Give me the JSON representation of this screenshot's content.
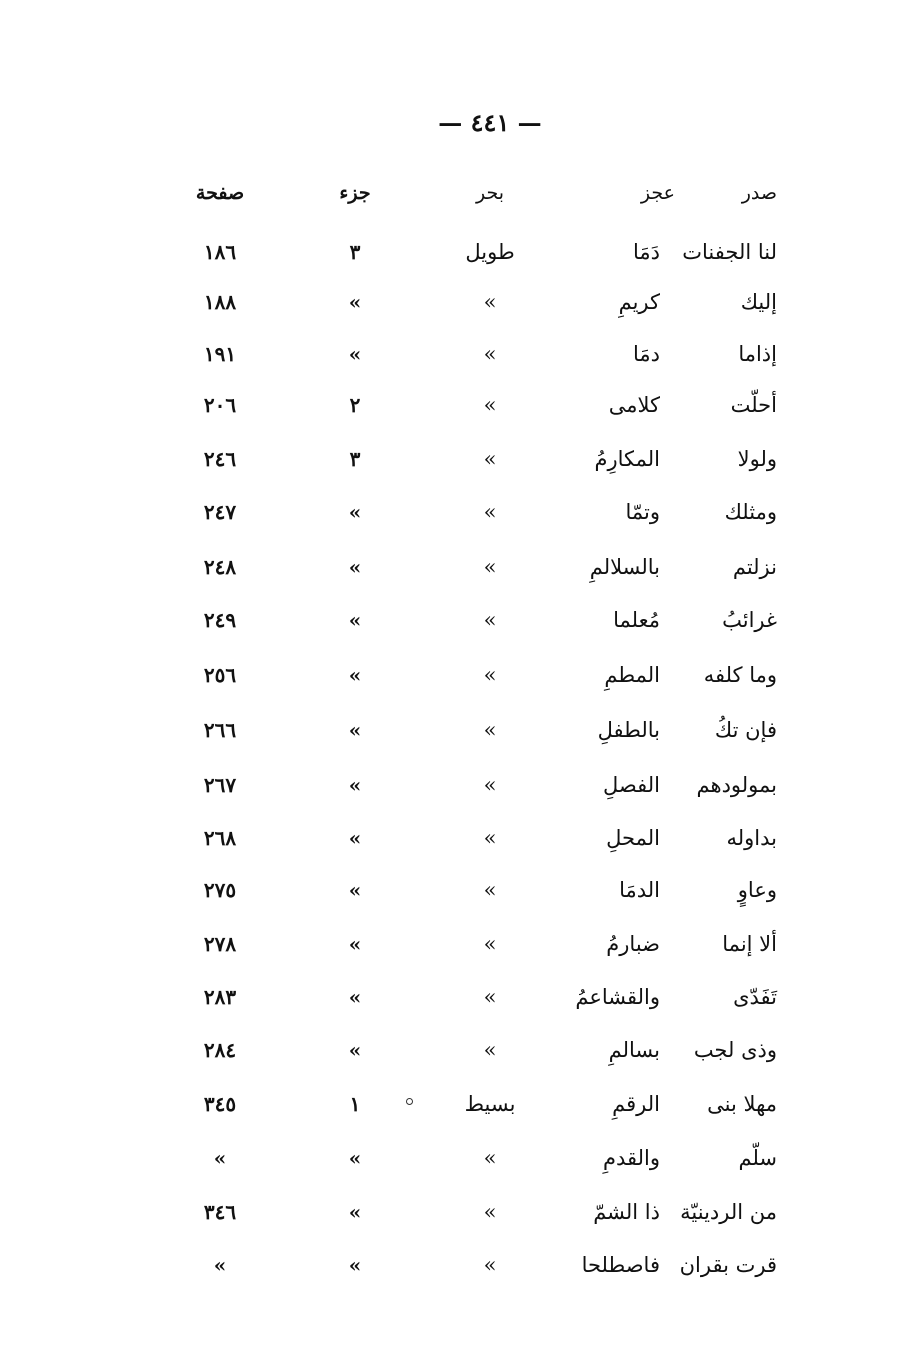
{
  "page_number": "— ٤٤١ —",
  "headers": {
    "page": "صفحة",
    "part": "جزء",
    "meter": "بحر",
    "ajuz": "عجز",
    "sadr": "صدر"
  },
  "rows": [
    {
      "sadr": "لنا الجفنات",
      "ajuz": "دَمَا",
      "meter": "طويل",
      "part": "٣",
      "page": "١٨٦"
    },
    {
      "sadr": "إليك",
      "ajuz": "كريمِ",
      "meter": "»",
      "part": "»",
      "page": "١٨٨"
    },
    {
      "sadr": "إذاما",
      "ajuz": "دمَا",
      "meter": "»",
      "part": "»",
      "page": "١٩١"
    },
    {
      "sadr": "أحلّت",
      "ajuz": "كلامى",
      "meter": "»",
      "part": "٢",
      "page": "٢٠٦"
    },
    {
      "sadr": "ولولا",
      "ajuz": "المكارِمُ",
      "meter": "»",
      "part": "٣",
      "page": "٢٤٦"
    },
    {
      "sadr": "ومثلك",
      "ajuz": "وتمّا",
      "meter": "»",
      "part": "»",
      "page": "٢٤٧"
    },
    {
      "sadr": "نزلتم",
      "ajuz": "بالسلالمِ",
      "meter": "»",
      "part": "»",
      "page": "٢٤٨"
    },
    {
      "sadr": "غرائبُ",
      "ajuz": "مُعلما",
      "meter": "»",
      "part": "»",
      "page": "٢٤٩"
    },
    {
      "sadr": "وما كلفه",
      "ajuz": "المطمِ",
      "meter": "»",
      "part": "»",
      "page": "٢٥٦"
    },
    {
      "sadr": "فإن تكُ",
      "ajuz": "بالطفلِ",
      "meter": "»",
      "part": "»",
      "page": "٢٦٦"
    },
    {
      "sadr": "بمولودهم",
      "ajuz": "الفصلِ",
      "meter": "»",
      "part": "»",
      "page": "٢٦٧"
    },
    {
      "sadr": "بداوله",
      "ajuz": "المحلِ",
      "meter": "»",
      "part": "»",
      "page": "٢٦٨"
    },
    {
      "sadr": "وعاوٍ",
      "ajuz": "الدمَا",
      "meter": "»",
      "part": "»",
      "page": "٢٧٥"
    },
    {
      "sadr": "ألا إنما",
      "ajuz": "ضبارمُ",
      "meter": "»",
      "part": "»",
      "page": "٢٧٨"
    },
    {
      "sadr": "تَفَدّى",
      "ajuz": "والقشاعمُ",
      "meter": "»",
      "part": "»",
      "page": "٢٨٣"
    },
    {
      "sadr": "وذى لجب",
      "ajuz": "بسالمِ",
      "meter": "»",
      "part": "»",
      "page": "٢٨٤"
    },
    {
      "sadr": "مهلا بنى",
      "ajuz": "الرقمِ",
      "meter": "بسيط",
      "part": "١",
      "page": "٣٤٥"
    },
    {
      "sadr": "سلّم",
      "ajuz": "والقدمِ",
      "meter": "»",
      "part": "»",
      "page": "»"
    },
    {
      "sadr": "من الردينيّة",
      "ajuz": "ذا الشمّ",
      "meter": "»",
      "part": "»",
      "page": "٣٤٦"
    },
    {
      "sadr": "قرت بقران",
      "ajuz": "فاصطلحا",
      "meter": "»",
      "part": "»",
      "page": "»"
    }
  ]
}
